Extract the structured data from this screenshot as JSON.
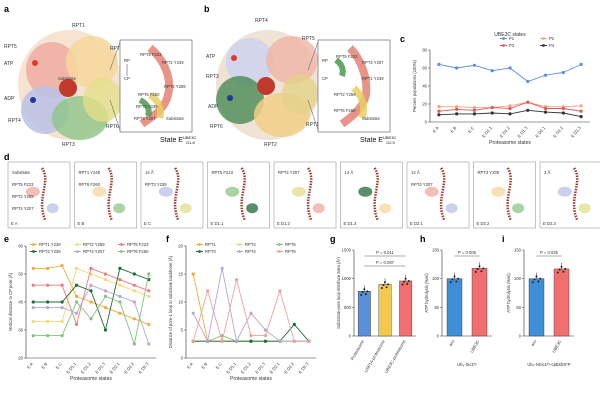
{
  "panels": {
    "a": {
      "letter": "a",
      "labels": [
        "RPT1",
        "RPT5",
        "RPT2",
        "ATP",
        "ADP",
        "RPT4",
        "RPT3",
        "RPT6",
        "Substrate"
      ],
      "inset": [
        "RPT5 F223",
        "RPT1 Y249",
        "RPT2 Y259",
        "RPT6 F260",
        "RPT3 Y239",
        "RPT4 Y207",
        "Substrate",
        "RP",
        "CP"
      ],
      "state": "State E",
      "state_sub": "D1.6",
      "state_sup": "UBE3C"
    },
    "b": {
      "letter": "b",
      "labels": [
        "RPT4",
        "ATP",
        "RPT5",
        "RPT3",
        "ADP",
        "RPT6",
        "RPT2",
        "RPT1"
      ],
      "inset": [
        "RPT5 F223",
        "RPT4 Y207",
        "RPT1 Y249",
        "RPT2 Y259",
        "RPT6 F260",
        "Substrate",
        "RP",
        "CP"
      ],
      "state": "State E",
      "state_sub": "D2.5",
      "state_sup": "UBE3C"
    },
    "d": {
      "letter": "d",
      "boxes": [
        {
          "state": "E A",
          "notes": [
            "Substrate",
            "RPT5 F223",
            "RPT2 Y259",
            "RPT4 Y207"
          ]
        },
        {
          "state": "E B",
          "notes": [
            "RPT1 Y249",
            "RPT6 F260"
          ]
        },
        {
          "state": "E C",
          "notes": [
            "14 Å",
            "RPT3 Y239"
          ]
        },
        {
          "state": "E D1.1",
          "notes": [
            "RPT5 F223"
          ]
        },
        {
          "state": "E D1.2",
          "notes": [
            "RPT4 Y207"
          ]
        },
        {
          "state": "E D1.3",
          "notes": [
            "14 Å"
          ]
        },
        {
          "state": "E D2.1",
          "notes": [
            "12 Å",
            "RPT4 Y207"
          ]
        },
        {
          "state": "E D2.2",
          "notes": [
            "RPT3 Y239"
          ]
        },
        {
          "state": "E D2.3",
          "notes": [
            "3 Å"
          ]
        }
      ]
    }
  },
  "chart_data": [
    {
      "id": "c",
      "type": "line",
      "title": "UBE3C states",
      "ylabel": "Percent populations (100%)",
      "xlabel": "Proteasome states",
      "categories": [
        "E A",
        "E B",
        "E C",
        "E D1.1",
        "E D1.2",
        "E D1.3",
        "E D2.1",
        "E D2.2",
        "E D2.3"
      ],
      "ylim": [
        0,
        80
      ],
      "series": [
        {
          "name": "P1",
          "color": "#5b8fd8",
          "values": [
            64,
            60,
            63,
            57,
            60,
            45,
            52,
            55,
            64
          ]
        },
        {
          "name": "P2",
          "color": "#f2a77a",
          "values": [
            17,
            17,
            16,
            16,
            18,
            22,
            17,
            17,
            18
          ]
        },
        {
          "name": "P3",
          "color": "#e05555",
          "values": [
            12,
            14,
            13,
            16,
            15,
            22,
            15,
            15,
            12
          ]
        },
        {
          "name": "P4",
          "color": "#333333",
          "values": [
            8,
            9,
            9,
            10,
            9,
            13,
            11,
            10,
            6
          ]
        }
      ]
    },
    {
      "id": "e",
      "type": "line",
      "ylabel": "Vertical distance to CP pore (Å)",
      "xlabel": "Proteasome states",
      "categories": [
        "E A",
        "E B",
        "E C",
        "E D1.1",
        "E D1.2",
        "E D1.3",
        "E D2.1",
        "E D2.2",
        "E D2.3"
      ],
      "ylim": [
        20,
        60
      ],
      "series": [
        {
          "name": "RPT1 Y249",
          "color": "#f4a93a",
          "values": [
            52,
            52,
            53,
            42,
            40,
            38,
            36,
            34,
            32
          ]
        },
        {
          "name": "RPT2 Y259",
          "color": "#f5d878",
          "values": [
            33,
            33,
            33,
            52,
            50,
            48,
            46,
            44,
            42
          ]
        },
        {
          "name": "RPT5 F223",
          "color": "#e87b7b",
          "values": [
            46,
            46,
            46,
            32,
            52,
            50,
            48,
            46,
            44
          ]
        },
        {
          "name": "RPT3 Y239",
          "color": "#1e6b3a",
          "values": [
            40,
            40,
            40,
            46,
            44,
            30,
            52,
            50,
            48
          ]
        },
        {
          "name": "RPT4 Y207",
          "color": "#b7a6d6",
          "values": [
            38,
            38,
            38,
            36,
            46,
            44,
            42,
            40,
            25
          ]
        },
        {
          "name": "RPT6 F260",
          "color": "#86c27a",
          "values": [
            28,
            28,
            28,
            40,
            34,
            42,
            40,
            25,
            50
          ]
        }
      ]
    },
    {
      "id": "f",
      "type": "line",
      "ylabel": "Distance of pore-1 loop to substrate backbone (Å)",
      "xlabel": "Proteasome states",
      "categories": [
        "E A",
        "E B",
        "E C",
        "E D1.1",
        "E D1.2",
        "E D1.3",
        "E D2.1",
        "E D2.2",
        "E D2.3"
      ],
      "ylim": [
        0,
        20
      ],
      "series": [
        {
          "name": "RPT1",
          "color": "#f4a93a",
          "values": [
            15,
            3,
            3,
            3,
            3,
            3,
            3,
            3,
            3
          ]
        },
        {
          "name": "RPT2",
          "color": "#f5d878",
          "values": [
            3,
            3,
            3,
            3,
            3,
            3,
            3,
            3,
            3
          ]
        },
        {
          "name": "RPT6",
          "color": "#86c27a",
          "values": [
            3,
            3,
            4,
            3,
            3,
            3,
            3,
            3,
            3
          ]
        },
        {
          "name": "RPT3",
          "color": "#1e6b3a",
          "values": [
            3,
            3,
            3,
            3,
            3,
            3,
            3,
            6,
            3
          ]
        },
        {
          "name": "RPT4",
          "color": "#b7a6d6",
          "values": [
            8,
            3,
            16,
            3,
            8,
            5,
            3,
            3,
            3
          ]
        },
        {
          "name": "RPT5",
          "color": "#f0a0a0",
          "values": [
            3,
            12,
            3,
            14,
            4,
            4,
            12,
            3,
            3
          ]
        }
      ]
    },
    {
      "id": "g",
      "type": "bar",
      "ylabel": "Substrate-pore loop interface area (Å²)",
      "categories": [
        "Proteasome",
        "USP14-proteasome",
        "UBE3C-proteasome"
      ],
      "values": [
        780,
        900,
        960
      ],
      "colors": [
        "#5b8fd8",
        "#f2c94c",
        "#f07070"
      ],
      "ylim": [
        0,
        1500
      ],
      "annotations": [
        "P = 0.011",
        "P = 0.087"
      ]
    },
    {
      "id": "h",
      "type": "bar",
      "ylabel": "ATP hydrolysis (%wt)",
      "xlabel": "Ub₄-Sic1ᴾʸ",
      "categories": [
        "w/o",
        "UBE3C"
      ],
      "values": [
        100,
        118
      ],
      "colors": [
        "#3f8fd8",
        "#f07070"
      ],
      "ylim": [
        0,
        150
      ],
      "annotations": [
        "P = 0.006"
      ]
    },
    {
      "id": "i",
      "type": "bar",
      "ylabel": "ATP hydrolysis (%wt)",
      "xlabel": "Ubₙ-NSic1ᴾʸ-cpBsfGFP",
      "categories": [
        "w/o",
        "UBE3C"
      ],
      "values": [
        100,
        117
      ],
      "colors": [
        "#3f8fd8",
        "#f07070"
      ],
      "ylim": [
        0,
        150
      ],
      "annotations": [
        "P = 0.025"
      ]
    }
  ]
}
